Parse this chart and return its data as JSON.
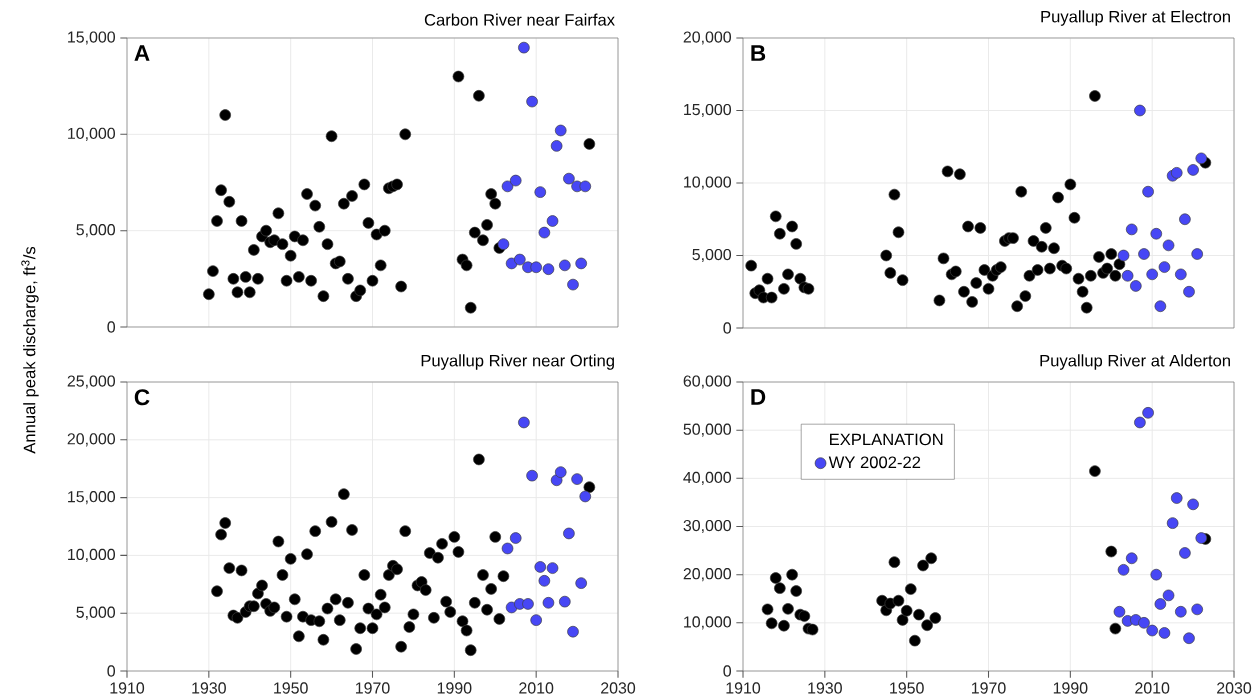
{
  "chart_data": [
    {
      "type": "scatter",
      "title": "Carbon River near Fairfax",
      "annotations": [
        "A"
      ],
      "xlim": [
        1910,
        2030
      ],
      "ylim": [
        0,
        15000
      ],
      "xticks": [
        1910,
        1930,
        1950,
        1970,
        1990,
        2010,
        2030
      ],
      "yticks": [
        0,
        {
          "value": 5000,
          "label": "5,000"
        },
        {
          "value": 10000,
          "label": "10,000"
        },
        {
          "value": 15000,
          "label": "15,000"
        }
      ],
      "tick_labels": "y",
      "grid": true,
      "series": [
        {
          "color": "#000000",
          "x": [
            1930,
            1931,
            1932,
            1933,
            1934,
            1935,
            1936,
            1937,
            1938,
            1939,
            1940,
            1941,
            1942,
            1943,
            1944,
            1945,
            1946,
            1947,
            1948,
            1949,
            1950,
            1951,
            1952,
            1953,
            1954,
            1955,
            1956,
            1957,
            1958,
            1959,
            1960,
            1961,
            1962,
            1963,
            1964,
            1965,
            1966,
            1967,
            1968,
            1969,
            1970,
            1971,
            1972,
            1973,
            1974,
            1975,
            1976,
            1977,
            1978,
            1991,
            1992,
            1993,
            1994,
            1995,
            1996,
            1997,
            1998,
            1999,
            2000,
            2001,
            2023
          ],
          "values": [
            1700,
            2900,
            5500,
            7100,
            11000,
            6500,
            2500,
            1800,
            5500,
            2600,
            1800,
            4000,
            2500,
            4700,
            5000,
            4400,
            4500,
            5900,
            4300,
            2400,
            3700,
            4700,
            2600,
            4500,
            6900,
            2400,
            6300,
            5200,
            1600,
            4300,
            9900,
            3300,
            3400,
            6400,
            2500,
            6800,
            1600,
            1900,
            7400,
            5400,
            2400,
            4800,
            3200,
            5000,
            7200,
            7300,
            7400,
            2100,
            10000,
            13000,
            3500,
            3200,
            1000,
            4900,
            12000,
            4500,
            5300,
            6900,
            6400,
            4100,
            9500
          ]
        },
        {
          "color": "#4747f5",
          "x": [
            2002,
            2003,
            2004,
            2005,
            2006,
            2007,
            2008,
            2009,
            2010,
            2011,
            2012,
            2013,
            2014,
            2015,
            2016,
            2017,
            2018,
            2019,
            2020,
            2021,
            2022
          ],
          "values": [
            4300,
            7300,
            3300,
            7600,
            3500,
            14500,
            3100,
            11700,
            3100,
            7000,
            4900,
            3000,
            5500,
            9400,
            10200,
            3200,
            7700,
            2200,
            7300,
            3300,
            7300
          ]
        }
      ]
    },
    {
      "type": "scatter",
      "title": "Puyallup River at Electron",
      "annotations": [
        "B"
      ],
      "xlim": [
        1910,
        2030
      ],
      "ylim": [
        0,
        20000
      ],
      "xticks": [
        1910,
        1930,
        1950,
        1970,
        1990,
        2010,
        2030
      ],
      "yticks": [
        0,
        {
          "value": 5000,
          "label": "5,000"
        },
        {
          "value": 10000,
          "label": "10,000"
        },
        {
          "value": 15000,
          "label": "15,000"
        },
        {
          "value": 20000,
          "label": "20,000"
        }
      ],
      "tick_labels": "y",
      "grid": true,
      "series": [
        {
          "color": "#000000",
          "x": [
            1912,
            1913,
            1914,
            1915,
            1916,
            1917,
            1918,
            1919,
            1920,
            1921,
            1922,
            1923,
            1924,
            1925,
            1926,
            1945,
            1946,
            1947,
            1948,
            1949,
            1958,
            1959,
            1960,
            1961,
            1962,
            1963,
            1964,
            1965,
            1966,
            1967,
            1968,
            1969,
            1970,
            1971,
            1972,
            1973,
            1974,
            1975,
            1976,
            1977,
            1978,
            1979,
            1980,
            1981,
            1982,
            1983,
            1984,
            1985,
            1986,
            1987,
            1988,
            1989,
            1990,
            1991,
            1992,
            1993,
            1994,
            1995,
            1996,
            1997,
            1998,
            1999,
            2000,
            2001,
            2002,
            2023
          ],
          "values": [
            4300,
            2400,
            2600,
            2100,
            3400,
            2100,
            7700,
            6500,
            2700,
            3700,
            7000,
            5800,
            3400,
            2800,
            2700,
            5000,
            3800,
            9200,
            6600,
            3300,
            1900,
            4800,
            10800,
            3700,
            3900,
            10600,
            2500,
            7000,
            1800,
            3100,
            6900,
            4000,
            2700,
            3600,
            4000,
            4200,
            6000,
            6200,
            6200,
            1500,
            9400,
            2200,
            3600,
            6000,
            4000,
            5600,
            6900,
            4100,
            5500,
            9000,
            4300,
            4100,
            9900,
            7600,
            3400,
            2500,
            1400,
            3600,
            16000,
            4900,
            3800,
            4100,
            5100,
            3600,
            4400,
            11400
          ]
        },
        {
          "color": "#4747f5",
          "x": [
            2003,
            2004,
            2005,
            2006,
            2007,
            2008,
            2009,
            2010,
            2011,
            2012,
            2013,
            2014,
            2015,
            2016,
            2017,
            2018,
            2019,
            2020,
            2021,
            2022
          ],
          "values": [
            5000,
            3600,
            6800,
            2900,
            15000,
            5100,
            9400,
            3700,
            6500,
            1500,
            4200,
            5700,
            10500,
            10700,
            3700,
            7500,
            2500,
            10900,
            5100,
            11700
          ]
        }
      ]
    },
    {
      "type": "scatter",
      "title": "Puyallup River near Orting",
      "annotations": [
        "C"
      ],
      "ylabel": "Annual peak discharge, ft$^{3}$/s",
      "xlim": [
        1910,
        2030
      ],
      "ylim": [
        0,
        25000
      ],
      "xticks": [
        1910,
        1930,
        1950,
        1970,
        1990,
        2010,
        2030
      ],
      "yticks": [
        0,
        {
          "value": 5000,
          "label": "5,000"
        },
        {
          "value": 10000,
          "label": "10,000"
        },
        {
          "value": 15000,
          "label": "15,000"
        },
        {
          "value": 20000,
          "label": "20,000"
        },
        {
          "value": 25000,
          "label": "25,000"
        }
      ],
      "grid": true,
      "series": [
        {
          "color": "#000000",
          "x": [
            1932,
            1933,
            1934,
            1935,
            1936,
            1937,
            1938,
            1939,
            1940,
            1941,
            1942,
            1943,
            1944,
            1945,
            1946,
            1947,
            1948,
            1949,
            1950,
            1951,
            1952,
            1953,
            1954,
            1955,
            1956,
            1957,
            1958,
            1959,
            1960,
            1961,
            1962,
            1963,
            1964,
            1965,
            1966,
            1967,
            1968,
            1969,
            1970,
            1971,
            1972,
            1973,
            1974,
            1975,
            1976,
            1977,
            1978,
            1979,
            1980,
            1981,
            1982,
            1983,
            1984,
            1985,
            1986,
            1987,
            1988,
            1989,
            1990,
            1991,
            1992,
            1993,
            1994,
            1995,
            1996,
            1997,
            1998,
            1999,
            2000,
            2001,
            2002,
            2023
          ],
          "values": [
            6900,
            11800,
            12800,
            8900,
            4800,
            4600,
            8700,
            5100,
            5600,
            5600,
            6700,
            7400,
            5800,
            5200,
            5500,
            11200,
            8300,
            4700,
            9700,
            6200,
            3000,
            4700,
            10100,
            4400,
            12100,
            4300,
            2700,
            5400,
            12900,
            6200,
            4400,
            15300,
            5900,
            12200,
            1900,
            3700,
            8300,
            5400,
            3700,
            4900,
            6600,
            5500,
            8300,
            9100,
            8800,
            2100,
            12100,
            3800,
            4900,
            7400,
            7700,
            7000,
            10200,
            4600,
            9800,
            11000,
            6000,
            5100,
            11600,
            10300,
            4300,
            3500,
            1800,
            5900,
            18300,
            8300,
            5300,
            7100,
            11600,
            4500,
            8200,
            15900
          ]
        },
        {
          "color": "#4747f5",
          "x": [
            2003,
            2004,
            2005,
            2006,
            2007,
            2008,
            2009,
            2010,
            2011,
            2012,
            2013,
            2014,
            2015,
            2016,
            2017,
            2018,
            2019,
            2020,
            2021,
            2022
          ],
          "values": [
            10600,
            5500,
            11500,
            5800,
            21500,
            5800,
            16900,
            4400,
            9000,
            7800,
            5900,
            8900,
            16500,
            17200,
            6000,
            11900,
            3400,
            16600,
            7600,
            15100
          ]
        }
      ]
    },
    {
      "type": "scatter",
      "title": "Puyallup River at Alderton",
      "annotations": [
        "D"
      ],
      "legend_title": "EXPLANATION",
      "legend": "top left",
      "xlim": [
        1910,
        2030
      ],
      "ylim": [
        0,
        60000
      ],
      "xticks": [
        1910,
        1930,
        1950,
        1970,
        1990,
        2010,
        2030
      ],
      "yticks": [
        0,
        {
          "value": 10000,
          "label": "10,000"
        },
        {
          "value": 20000,
          "label": "20,000"
        },
        {
          "value": 30000,
          "label": "30,000"
        },
        {
          "value": 40000,
          "label": "40,000"
        },
        {
          "value": 50000,
          "label": "50,000"
        },
        {
          "value": 60000,
          "label": "60,000"
        }
      ],
      "grid": true,
      "series": [
        {
          "color": "#000000",
          "x": [
            1916,
            1917,
            1918,
            1919,
            1920,
            1921,
            1922,
            1923,
            1924,
            1925,
            1926,
            1927,
            1944,
            1945,
            1946,
            1947,
            1948,
            1949,
            1950,
            1951,
            1952,
            1953,
            1954,
            1955,
            1956,
            1957,
            1996,
            2000,
            2001,
            2023
          ],
          "values": [
            12800,
            9900,
            19300,
            17200,
            9400,
            12900,
            20000,
            16600,
            11700,
            11400,
            8800,
            8600,
            14600,
            12600,
            14000,
            22600,
            14600,
            10600,
            12500,
            17000,
            6300,
            11700,
            21900,
            9500,
            23400,
            11000,
            41500,
            24800,
            8800,
            27400
          ]
        },
        {
          "name": "WY 2002-22",
          "color": "#4747f5",
          "x": [
            2002,
            2003,
            2004,
            2005,
            2006,
            2007,
            2008,
            2009,
            2010,
            2011,
            2012,
            2013,
            2014,
            2015,
            2016,
            2017,
            2018,
            2019,
            2020,
            2021,
            2022
          ],
          "values": [
            12300,
            21000,
            10400,
            23400,
            10600,
            51600,
            10000,
            53600,
            8400,
            20000,
            13900,
            7900,
            15700,
            30700,
            35900,
            12300,
            24500,
            6800,
            34600,
            12800,
            27600
          ]
        }
      ]
    }
  ]
}
